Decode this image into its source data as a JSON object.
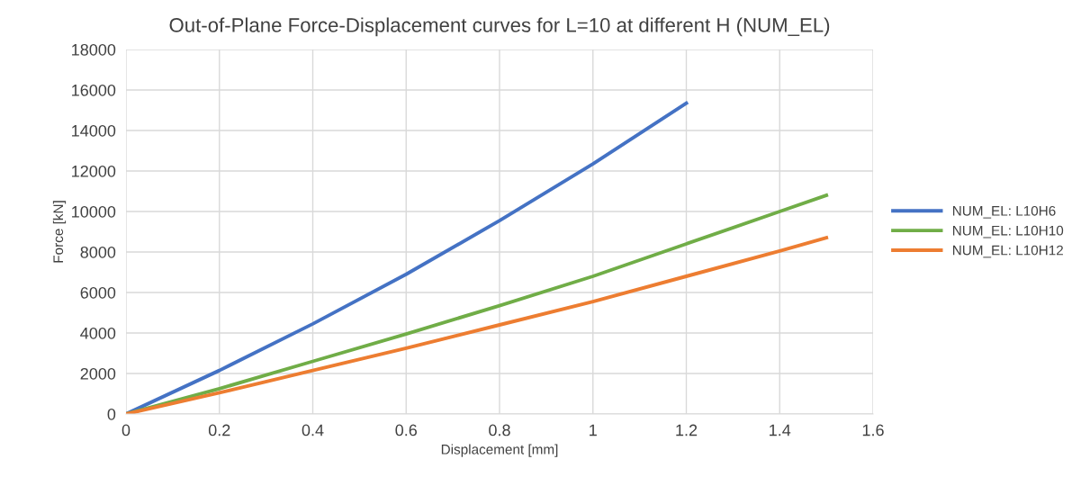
{
  "chart_data": {
    "type": "line",
    "title": "Out-of-Plane Force-Displacement curves for L=10 at different H (NUM_EL)",
    "xlabel": "Displacement [mm]",
    "ylabel": "Force [kN]",
    "series": [
      {
        "name": "NUM_EL: L10H6",
        "color": "#4472c4",
        "x": [
          0,
          0.2,
          0.4,
          0.6,
          0.8,
          1.0,
          1.2
        ],
        "values": [
          0,
          2150,
          4450,
          6900,
          9550,
          12350,
          15350
        ]
      },
      {
        "name": "NUM_EL: L10H10",
        "color": "#70ad47",
        "x": [
          0,
          0.2,
          0.4,
          0.6,
          0.8,
          1.0,
          1.2,
          1.4,
          1.5
        ],
        "values": [
          0,
          1250,
          2600,
          3950,
          5350,
          6800,
          8400,
          10000,
          10800
        ]
      },
      {
        "name": "NUM_EL: L10H12",
        "color": "#ed7d31",
        "x": [
          0,
          0.2,
          0.4,
          0.6,
          0.8,
          1.0,
          1.2,
          1.4,
          1.5
        ],
        "values": [
          0,
          1050,
          2150,
          3250,
          4400,
          5550,
          6800,
          8050,
          8700
        ]
      }
    ],
    "xlim": [
      0,
      1.6
    ],
    "xticks": [
      0,
      0.2,
      0.4,
      0.6,
      0.8,
      1,
      1.2,
      1.4,
      1.6
    ],
    "ylim": [
      0,
      18000
    ],
    "yticks": [
      0,
      2000,
      4000,
      6000,
      8000,
      10000,
      12000,
      14000,
      16000,
      18000
    ],
    "grid": true,
    "legend": "right",
    "marker": "none",
    "line_style": "solid"
  }
}
